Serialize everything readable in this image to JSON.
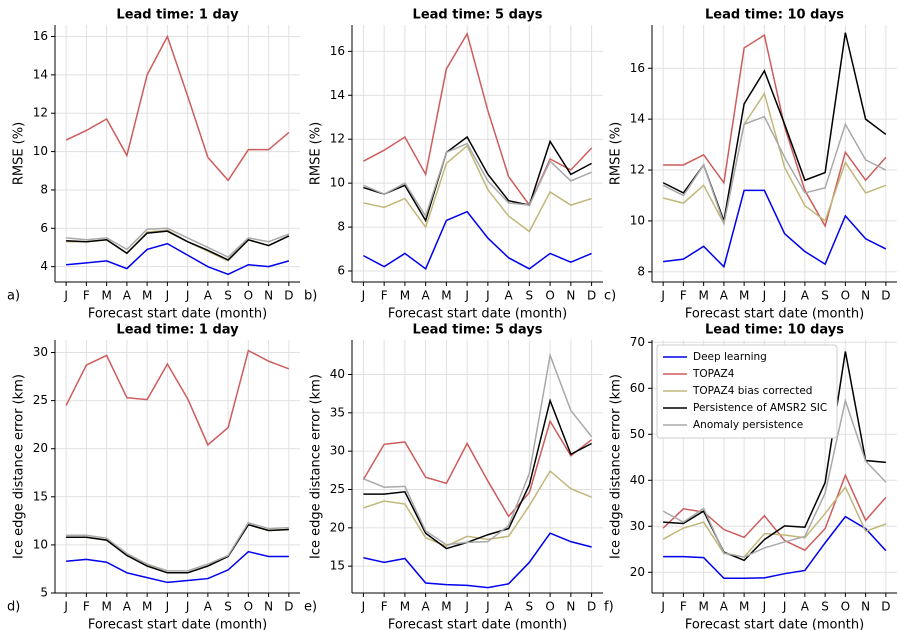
{
  "chart_data": [
    {
      "type": "line",
      "panel_label": "a)",
      "title": "Lead time: 1 day",
      "xlabel": "Forecast start date (month)",
      "ylabel": "RMSE (%)",
      "categories": [
        "J",
        "F",
        "M",
        "A",
        "M",
        "J",
        "J",
        "A",
        "S",
        "O",
        "N",
        "D"
      ],
      "ylim": [
        3.2,
        16.6
      ],
      "yticks": [
        4,
        6,
        8,
        10,
        12,
        14,
        16
      ],
      "grid": true,
      "series": [
        {
          "color": "#0000ee",
          "values": [
            4.1,
            4.2,
            4.3,
            3.9,
            4.9,
            5.2,
            4.6,
            4.0,
            3.6,
            4.1,
            4.0,
            4.3
          ]
        },
        {
          "color": "#cd5c5c",
          "values": [
            10.6,
            11.1,
            11.7,
            9.8,
            14.0,
            16.0,
            12.9,
            9.7,
            8.5,
            10.1,
            10.1,
            11.0
          ]
        },
        {
          "color": "#c2b77a",
          "values": [
            5.3,
            5.3,
            5.4,
            4.7,
            5.8,
            5.9,
            5.3,
            4.8,
            4.3,
            5.4,
            5.1,
            5.6
          ]
        },
        {
          "color": "#000000",
          "values": [
            5.35,
            5.3,
            5.4,
            4.7,
            5.75,
            5.85,
            5.3,
            4.85,
            4.35,
            5.4,
            5.1,
            5.6
          ]
        },
        {
          "color": "#a9a9a9",
          "values": [
            5.5,
            5.4,
            5.5,
            4.9,
            5.95,
            6.0,
            5.5,
            5.0,
            4.5,
            5.5,
            5.3,
            5.7
          ]
        }
      ]
    },
    {
      "type": "line",
      "panel_label": "b)",
      "title": "Lead time: 5 days",
      "xlabel": "Forecast start date (month)",
      "ylabel": "RMSE (%)",
      "categories": [
        "J",
        "F",
        "M",
        "A",
        "M",
        "J",
        "J",
        "A",
        "S",
        "O",
        "N",
        "D"
      ],
      "ylim": [
        5.5,
        17.2
      ],
      "yticks": [
        6,
        8,
        10,
        12,
        14,
        16
      ],
      "grid": true,
      "series": [
        {
          "color": "#0000ee",
          "values": [
            6.7,
            6.2,
            6.8,
            6.1,
            8.3,
            8.7,
            7.5,
            6.6,
            6.1,
            6.8,
            6.4,
            6.8
          ]
        },
        {
          "color": "#cd5c5c",
          "values": [
            11.0,
            11.5,
            12.1,
            10.4,
            15.2,
            16.8,
            13.3,
            10.3,
            9.0,
            11.1,
            10.6,
            11.6
          ]
        },
        {
          "color": "#c2b77a",
          "values": [
            9.1,
            8.9,
            9.3,
            8.0,
            10.9,
            11.7,
            9.7,
            8.5,
            7.8,
            9.6,
            9.0,
            9.3
          ]
        },
        {
          "color": "#000000",
          "values": [
            9.8,
            9.5,
            9.9,
            8.3,
            11.4,
            12.1,
            10.4,
            9.2,
            9.0,
            11.9,
            10.4,
            10.9
          ]
        },
        {
          "color": "#a9a9a9",
          "values": [
            9.9,
            9.5,
            10.0,
            8.5,
            11.4,
            11.8,
            10.1,
            9.1,
            9.0,
            11.0,
            10.1,
            10.5
          ]
        }
      ]
    },
    {
      "type": "line",
      "panel_label": "c)",
      "title": "Lead time: 10 days",
      "xlabel": "Forecast start date (month)",
      "ylabel": "RMSE (%)",
      "categories": [
        "J",
        "F",
        "M",
        "A",
        "M",
        "J",
        "J",
        "A",
        "S",
        "O",
        "N",
        "D"
      ],
      "ylim": [
        7.6,
        17.7
      ],
      "yticks": [
        8,
        10,
        12,
        14,
        16
      ],
      "grid": true,
      "series": [
        {
          "color": "#0000ee",
          "values": [
            8.4,
            8.5,
            9.0,
            8.2,
            11.2,
            11.2,
            9.5,
            8.8,
            8.3,
            10.2,
            9.3,
            8.9
          ]
        },
        {
          "color": "#cd5c5c",
          "values": [
            12.2,
            12.2,
            12.6,
            11.5,
            16.8,
            17.3,
            13.7,
            11.2,
            9.8,
            12.7,
            11.6,
            12.5
          ]
        },
        {
          "color": "#c2b77a",
          "values": [
            10.9,
            10.7,
            11.4,
            9.9,
            13.8,
            15.0,
            12.1,
            10.6,
            10.0,
            12.3,
            11.1,
            11.4
          ]
        },
        {
          "color": "#000000",
          "values": [
            11.5,
            11.1,
            12.2,
            10.0,
            14.6,
            15.9,
            13.8,
            11.6,
            11.9,
            17.4,
            14.0,
            13.4
          ]
        },
        {
          "color": "#a9a9a9",
          "values": [
            11.4,
            11.0,
            12.2,
            9.9,
            13.8,
            14.1,
            12.5,
            11.1,
            11.3,
            13.8,
            12.4,
            12.0
          ]
        }
      ]
    },
    {
      "type": "line",
      "panel_label": "d)",
      "title": "Lead time: 1 day",
      "xlabel": "Forecast start date (month)",
      "ylabel": "Ice edge distance error (km)",
      "categories": [
        "J",
        "F",
        "M",
        "A",
        "M",
        "J",
        "J",
        "A",
        "S",
        "O",
        "N",
        "D"
      ],
      "ylim": [
        5,
        31.3
      ],
      "yticks": [
        5,
        10,
        15,
        20,
        25,
        30
      ],
      "grid": true,
      "series": [
        {
          "color": "#0000ee",
          "values": [
            8.3,
            8.5,
            8.2,
            7.1,
            6.6,
            6.1,
            6.3,
            6.5,
            7.4,
            9.3,
            8.8,
            8.8
          ]
        },
        {
          "color": "#cd5c5c",
          "values": [
            24.5,
            28.7,
            29.7,
            25.3,
            25.1,
            28.8,
            25.2,
            20.4,
            22.2,
            30.2,
            29.1,
            28.3
          ]
        },
        {
          "color": "#c2b77a",
          "values": [
            10.8,
            10.8,
            10.5,
            9.0,
            7.9,
            7.1,
            7.1,
            7.8,
            8.8,
            12.1,
            11.5,
            11.6
          ]
        },
        {
          "color": "#000000",
          "values": [
            10.8,
            10.8,
            10.5,
            8.9,
            7.8,
            7.1,
            7.1,
            7.8,
            8.8,
            12.1,
            11.5,
            11.6
          ]
        },
        {
          "color": "#a9a9a9",
          "values": [
            11.0,
            11.0,
            10.7,
            9.1,
            8.0,
            7.3,
            7.3,
            8.0,
            8.9,
            12.3,
            11.7,
            11.8
          ]
        }
      ]
    },
    {
      "type": "line",
      "panel_label": "e)",
      "title": "Lead time: 5 days",
      "xlabel": "Forecast start date (month)",
      "ylabel": "Ice edge distance error (km)",
      "categories": [
        "J",
        "F",
        "M",
        "A",
        "M",
        "J",
        "J",
        "A",
        "S",
        "O",
        "N",
        "D"
      ],
      "ylim": [
        11.5,
        44.5
      ],
      "yticks": [
        15,
        20,
        25,
        30,
        35,
        40
      ],
      "grid": true,
      "series": [
        {
          "color": "#0000ee",
          "values": [
            16.1,
            15.5,
            16.0,
            12.8,
            12.6,
            12.5,
            12.2,
            12.7,
            15.5,
            19.3,
            18.2,
            17.5
          ]
        },
        {
          "color": "#cd5c5c",
          "values": [
            26.3,
            30.9,
            31.2,
            26.6,
            25.8,
            31.0,
            26.1,
            21.5,
            24.6,
            33.9,
            29.4,
            31.5
          ]
        },
        {
          "color": "#c2b77a",
          "values": [
            22.6,
            23.5,
            23.1,
            18.7,
            17.6,
            18.9,
            18.5,
            18.9,
            22.9,
            27.4,
            25.1,
            24.0
          ]
        },
        {
          "color": "#000000",
          "values": [
            24.4,
            24.4,
            24.7,
            19.3,
            17.3,
            18.1,
            19.1,
            19.9,
            25.6,
            36.6,
            29.6,
            31.0
          ]
        },
        {
          "color": "#a9a9a9",
          "values": [
            26.4,
            25.3,
            25.4,
            19.6,
            17.8,
            18.1,
            18.2,
            20.3,
            27.1,
            42.5,
            35.3,
            31.9
          ]
        }
      ]
    },
    {
      "type": "line",
      "panel_label": "f)",
      "title": "Lead time: 10 days",
      "xlabel": "Forecast start date (month)",
      "ylabel": "Ice edge distance error (km)",
      "categories": [
        "J",
        "F",
        "M",
        "A",
        "M",
        "J",
        "J",
        "A",
        "S",
        "O",
        "N",
        "D"
      ],
      "ylim": [
        15.5,
        70.5
      ],
      "yticks": [
        20,
        30,
        40,
        50,
        60,
        70
      ],
      "grid": true,
      "legend": "upper left",
      "series": [
        {
          "name": "Deep learning",
          "color": "#0000ee",
          "values": [
            23.4,
            23.4,
            23.2,
            18.7,
            18.7,
            18.8,
            19.7,
            20.4,
            26.4,
            32.1,
            29.5,
            24.7
          ]
        },
        {
          "name": "TOPAZ4",
          "color": "#cd5c5c",
          "values": [
            29.6,
            33.8,
            33.1,
            29.3,
            27.6,
            32.3,
            26.9,
            24.8,
            29.5,
            41.1,
            31.3,
            36.3
          ]
        },
        {
          "name": "TOPAZ4 bias corrected",
          "color": "#c2b77a",
          "values": [
            27.2,
            29.6,
            30.9,
            24.1,
            23.3,
            28.4,
            28.1,
            27.5,
            32.8,
            38.5,
            28.9,
            30.5
          ]
        },
        {
          "name": "Persistence of AMSR2 SIC",
          "color": "#000000",
          "values": [
            30.9,
            30.6,
            33.3,
            24.4,
            22.6,
            27.1,
            30.1,
            29.8,
            39.5,
            68.0,
            44.3,
            43.9
          ]
        },
        {
          "name": "Anomaly persistence",
          "color": "#a9a9a9",
          "values": [
            33.3,
            30.9,
            33.9,
            24.2,
            23.3,
            25.3,
            26.6,
            27.8,
            37.2,
            57.3,
            44.2,
            39.6
          ]
        }
      ]
    }
  ]
}
